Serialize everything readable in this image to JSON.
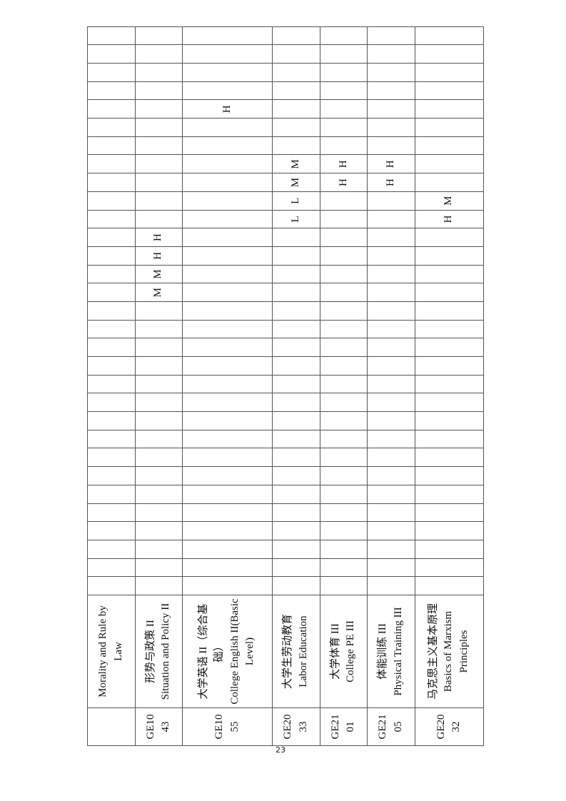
{
  "table": {
    "column_count": 31,
    "rows": [
      {
        "code": "",
        "name_lines": [
          "Morality and Rule by Law"
        ],
        "ratings": {}
      },
      {
        "code": "GE1043",
        "name_lines": [
          "形势与政策 II",
          "Situation and Policy II"
        ],
        "ratings": {
          "17": "M",
          "18": "M",
          "19": "H",
          "20": "H"
        }
      },
      {
        "code": "GE1055",
        "name_lines": [
          "大学英语 II（综合基础）",
          "College English II(Basic Level)"
        ],
        "ratings": {
          "27": "H"
        }
      },
      {
        "code": "GE2033",
        "name_lines": [
          "大学生劳动教育",
          "Labor Education"
        ],
        "ratings": {
          "21": "L",
          "22": "L",
          "23": "M",
          "24": "M"
        }
      },
      {
        "code": "GE2101",
        "name_lines": [
          "大学体育 III",
          "College PE III"
        ],
        "ratings": {
          "23": "H",
          "24": "H"
        }
      },
      {
        "code": "GE2105",
        "name_lines": [
          "体能训练 III",
          "Physical Training III"
        ],
        "ratings": {
          "23": "H",
          "24": "H"
        }
      },
      {
        "code": "GE2032",
        "name_lines": [
          "马克思主义基本原理",
          "Basics of Marxism Principles"
        ],
        "ratings": {
          "21": "H",
          "22": "M"
        }
      }
    ]
  },
  "page_number": "23"
}
